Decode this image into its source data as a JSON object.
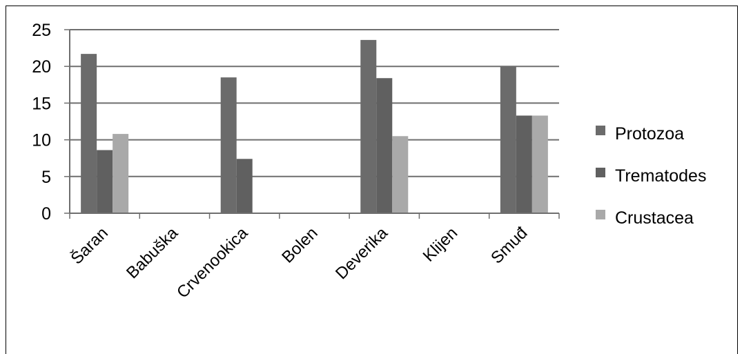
{
  "chart_data": {
    "type": "bar",
    "title": "",
    "xlabel": "",
    "ylabel": "",
    "categories": [
      "Šaran",
      "Babuška",
      "Crvenookica",
      "Bolen",
      "Deverika",
      "Klijen",
      "Smuđ"
    ],
    "series": [
      {
        "name": "Protozoa",
        "color": "#6b6b6b",
        "values": [
          21.7,
          0,
          18.5,
          0,
          23.6,
          0,
          20.0
        ]
      },
      {
        "name": "Trematodes",
        "color": "#606060",
        "values": [
          8.6,
          0,
          7.4,
          0,
          18.4,
          0,
          13.3
        ]
      },
      {
        "name": "Crustacea",
        "color": "#a9a9a9",
        "values": [
          10.8,
          0,
          0,
          0,
          10.5,
          0,
          13.3
        ]
      }
    ],
    "ylim": [
      0,
      25
    ],
    "yticks": [
      0,
      5,
      10,
      15,
      20,
      25
    ],
    "grid": true,
    "legend": "right"
  }
}
